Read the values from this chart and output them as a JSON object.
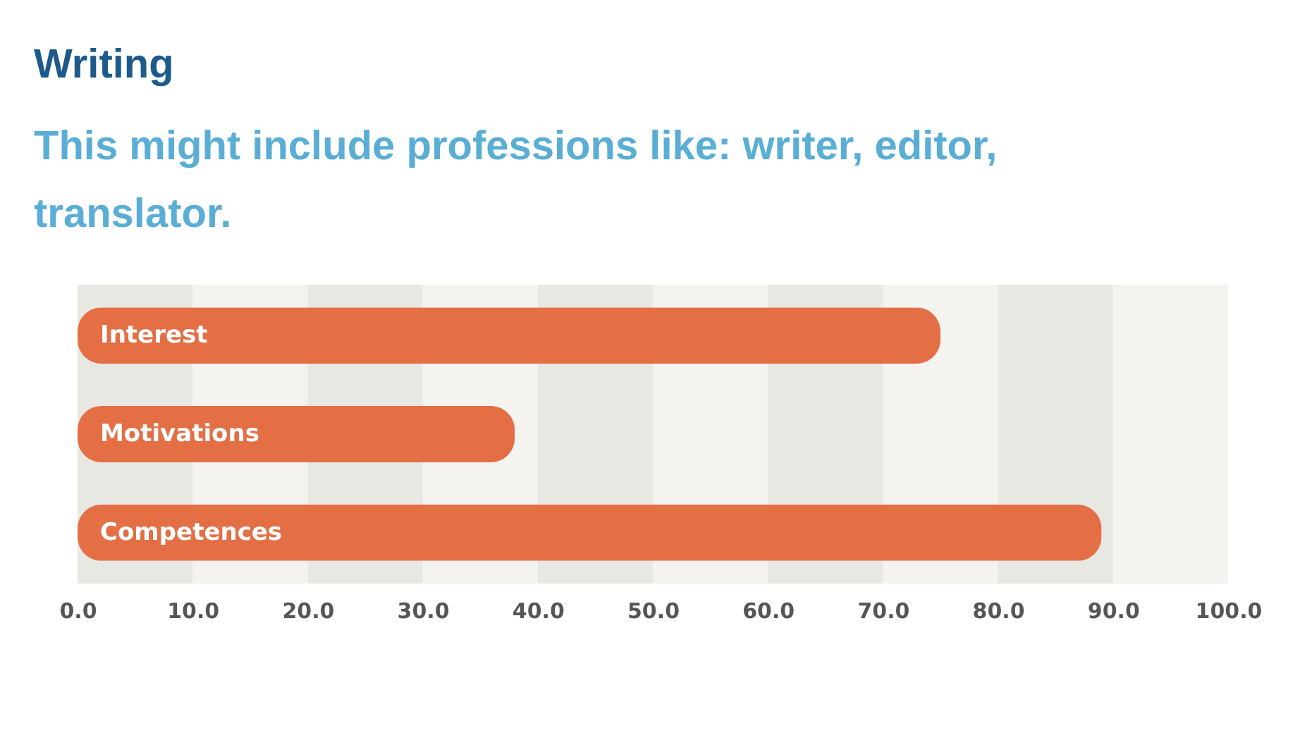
{
  "chart_data": {
    "type": "bar",
    "orientation": "horizontal",
    "title": "Writing",
    "subtitle": "This might include professions like: writer, editor, translator.",
    "categories": [
      "Interest",
      "Motivations",
      "Competences"
    ],
    "values": [
      75,
      38,
      89
    ],
    "color": "#e46f45",
    "xlim": [
      0,
      100
    ],
    "xticks": [
      {
        "value": 0,
        "label": "0.0"
      },
      {
        "value": 10,
        "label": "10.0"
      },
      {
        "value": 20,
        "label": "20.0"
      },
      {
        "value": 30,
        "label": "30.0"
      },
      {
        "value": 40,
        "label": "40.0"
      },
      {
        "value": 50,
        "label": "50.0"
      },
      {
        "value": 60,
        "label": "60.0"
      },
      {
        "value": 70,
        "label": "70.0"
      },
      {
        "value": 80,
        "label": "80.0"
      },
      {
        "value": 90,
        "label": "90.0"
      },
      {
        "value": 100,
        "label": "100.0"
      }
    ],
    "bands": [
      {
        "axis": "x",
        "from": 0,
        "to": 10,
        "color": "#e8e8e3"
      },
      {
        "axis": "x",
        "from": 20,
        "to": 30,
        "color": "#e8e8e3"
      },
      {
        "axis": "x",
        "from": 40,
        "to": 50,
        "color": "#e8e8e3"
      },
      {
        "axis": "x",
        "from": 60,
        "to": 70,
        "color": "#e8e8e3"
      },
      {
        "axis": "x",
        "from": 80,
        "to": 90,
        "color": "#e8e8e3"
      }
    ],
    "grid": false
  }
}
